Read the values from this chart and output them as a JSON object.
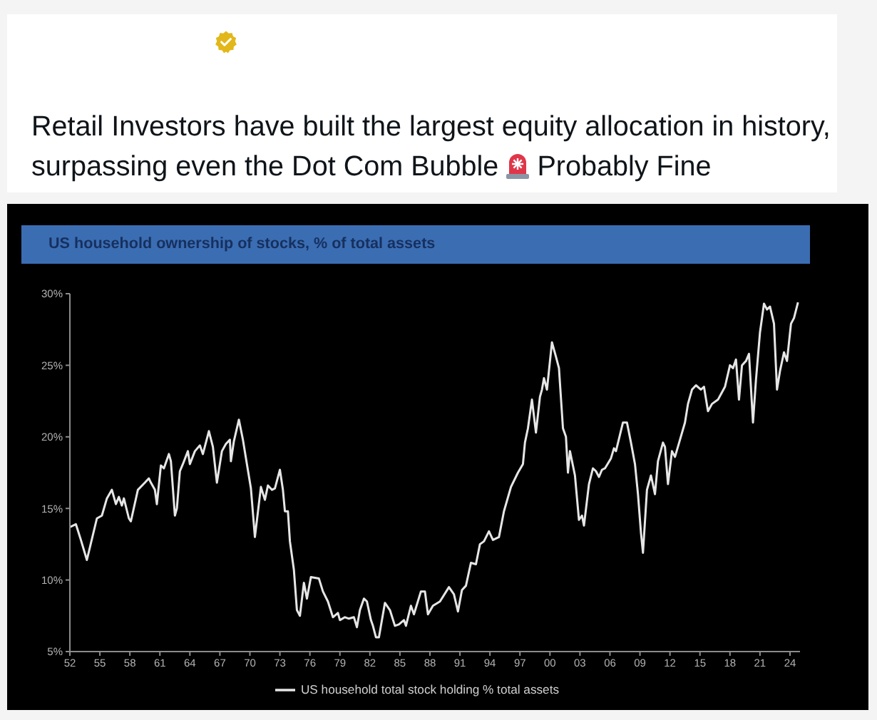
{
  "chart_data": {
    "type": "line",
    "title": "US household ownership of stocks, % of total assets",
    "annotations": [
      "Retail Investors have built the largest equity allocation in history,",
      "surpassing even the Dot Com Bubble",
      "Probably Fine"
    ],
    "x": [
      1952.0,
      1952.6,
      1953.1,
      1953.7,
      1954.7,
      1955.2,
      1955.7,
      1956.2,
      1956.6,
      1956.9,
      1957.2,
      1957.4,
      1957.9,
      1958.1,
      1958.8,
      1959.5,
      1959.9,
      1960.1,
      1960.5,
      1960.7,
      1961.1,
      1961.4,
      1961.9,
      1962.1,
      1962.5,
      1962.7,
      1963.0,
      1963.3,
      1963.8,
      1964.0,
      1964.5,
      1965.0,
      1965.3,
      1965.9,
      1966.3,
      1966.7,
      1967.2,
      1967.6,
      1968.0,
      1968.1,
      1968.4,
      1968.9,
      1969.3,
      1969.7,
      1970.1,
      1970.5,
      1971.1,
      1971.5,
      1971.8,
      1972.2,
      1972.5,
      1973.0,
      1973.3,
      1973.5,
      1973.8,
      1974.0,
      1974.4,
      1974.7,
      1975.0,
      1975.4,
      1975.7,
      1976.1,
      1976.9,
      1977.3,
      1977.8,
      1978.3,
      1978.8,
      1979.0,
      1979.5,
      1979.9,
      1980.4,
      1980.7,
      1981.0,
      1981.4,
      1981.7,
      1982.1,
      1982.3,
      1982.6,
      1982.9,
      1983.5,
      1984.0,
      1984.5,
      1984.9,
      1985.4,
      1985.6,
      1986.1,
      1986.4,
      1987.1,
      1987.5,
      1987.8,
      1988.3,
      1989.0,
      1989.9,
      1990.4,
      1990.8,
      1991.2,
      1991.6,
      1992.1,
      1992.6,
      1993.0,
      1993.4,
      1993.9,
      1994.3,
      1994.9,
      1995.4,
      1996.1,
      1996.8,
      1997.3,
      1997.5,
      1997.8,
      1998.2,
      1998.6,
      1999.0,
      1999.2,
      1999.4,
      1999.7,
      2000.2,
      2000.6,
      2000.9,
      2001.3,
      2001.6,
      2001.8,
      2002.0,
      2002.5,
      2002.9,
      2003.2,
      2003.4,
      2003.9,
      2004.3,
      2004.6,
      2004.9,
      2005.2,
      2005.5,
      2006.1,
      2006.4,
      2006.6,
      2007.3,
      2007.7,
      2008.1,
      2008.5,
      2008.8,
      2009.1,
      2009.3,
      2009.7,
      2010.1,
      2010.5,
      2010.8,
      2011.3,
      2011.5,
      2011.8,
      2012.2,
      2012.5,
      2013.0,
      2013.5,
      2013.8,
      2014.2,
      2014.6,
      2015.1,
      2015.4,
      2015.8,
      2016.2,
      2016.8,
      2017.5,
      2018.0,
      2018.3,
      2018.6,
      2018.9,
      2019.2,
      2019.6,
      2019.9,
      2020.3,
      2020.6,
      2021.0,
      2021.4,
      2021.7,
      2022.0,
      2022.4,
      2022.7,
      2023.0,
      2023.4,
      2023.7,
      2024.1,
      2024.4,
      2024.8
    ],
    "series": [
      {
        "name": "US household total stock holding % total assets",
        "color": "#e6e6e6",
        "values": [
          13.7,
          13.9,
          12.8,
          11.4,
          14.3,
          14.5,
          15.7,
          16.3,
          15.3,
          15.8,
          15.2,
          15.7,
          14.3,
          14.1,
          16.3,
          16.8,
          17.1,
          16.8,
          16.3,
          15.3,
          18.0,
          17.8,
          18.8,
          18.3,
          14.5,
          15.0,
          17.6,
          18.1,
          19.0,
          18.1,
          19.0,
          19.4,
          18.8,
          20.4,
          19.3,
          16.8,
          19.0,
          19.5,
          19.8,
          18.3,
          19.7,
          21.2,
          19.8,
          18.1,
          16.4,
          13.0,
          16.5,
          15.6,
          16.6,
          16.3,
          16.4,
          17.7,
          16.3,
          14.8,
          14.8,
          12.7,
          10.7,
          7.9,
          7.5,
          9.8,
          8.7,
          10.2,
          10.1,
          9.2,
          8.5,
          7.4,
          7.7,
          7.2,
          7.4,
          7.3,
          7.4,
          6.7,
          7.9,
          8.7,
          8.5,
          7.2,
          6.8,
          6.0,
          6.0,
          8.4,
          7.9,
          6.8,
          6.9,
          7.2,
          6.8,
          8.2,
          7.6,
          9.2,
          9.2,
          7.6,
          8.2,
          8.5,
          9.5,
          9.0,
          7.8,
          9.3,
          9.6,
          11.2,
          11.1,
          12.5,
          12.7,
          13.4,
          12.8,
          13.0,
          14.8,
          16.5,
          17.5,
          18.1,
          19.6,
          20.6,
          22.6,
          20.3,
          22.8,
          23.3,
          24.1,
          23.3,
          26.6,
          25.6,
          24.8,
          20.6,
          20.0,
          17.5,
          19.0,
          17.3,
          14.2,
          14.5,
          13.8,
          16.7,
          17.8,
          17.6,
          17.2,
          17.7,
          17.8,
          18.5,
          19.2,
          19.0,
          21.0,
          21.0,
          19.6,
          18.1,
          16.0,
          13.3,
          11.9,
          16.3,
          17.3,
          16.0,
          18.3,
          19.6,
          19.3,
          16.7,
          19.0,
          18.6,
          19.8,
          21.0,
          22.3,
          23.3,
          23.6,
          23.3,
          23.5,
          21.8,
          22.3,
          22.6,
          23.5,
          25.0,
          24.8,
          25.4,
          22.6,
          25.0,
          25.3,
          25.8,
          21.0,
          24.0,
          27.3,
          29.3,
          28.9,
          29.1,
          27.9,
          23.3,
          24.6,
          25.9,
          25.3,
          27.9,
          28.3,
          29.4
        ]
      }
    ],
    "xlim": [
      1952,
      2025
    ],
    "xticks": [
      {
        "value": 1952,
        "label": "52"
      },
      {
        "value": 1955,
        "label": "55"
      },
      {
        "value": 1958,
        "label": "58"
      },
      {
        "value": 1961,
        "label": "61"
      },
      {
        "value": 1964,
        "label": "64"
      },
      {
        "value": 1967,
        "label": "67"
      },
      {
        "value": 1970,
        "label": "70"
      },
      {
        "value": 1973,
        "label": "73"
      },
      {
        "value": 1976,
        "label": "76"
      },
      {
        "value": 1979,
        "label": "79"
      },
      {
        "value": 1982,
        "label": "82"
      },
      {
        "value": 1985,
        "label": "85"
      },
      {
        "value": 1988,
        "label": "88"
      },
      {
        "value": 1991,
        "label": "91"
      },
      {
        "value": 1994,
        "label": "94"
      },
      {
        "value": 1997,
        "label": "97"
      },
      {
        "value": 2000,
        "label": "00"
      },
      {
        "value": 2003,
        "label": "03"
      },
      {
        "value": 2006,
        "label": "06"
      },
      {
        "value": 2009,
        "label": "09"
      },
      {
        "value": 2012,
        "label": "12"
      },
      {
        "value": 2015,
        "label": "15"
      },
      {
        "value": 2018,
        "label": "18"
      },
      {
        "value": 2021,
        "label": "21"
      },
      {
        "value": 2024,
        "label": "24"
      }
    ],
    "ylim": [
      5,
      30
    ],
    "yticks": [
      {
        "value": 5,
        "label": "5%"
      },
      {
        "value": 10,
        "label": "10%"
      },
      {
        "value": 15,
        "label": "15%"
      },
      {
        "value": 20,
        "label": "20%"
      },
      {
        "value": 25,
        "label": "25%"
      },
      {
        "value": 30,
        "label": "30%"
      }
    ],
    "legend": "bottom",
    "line_style": "solid"
  }
}
